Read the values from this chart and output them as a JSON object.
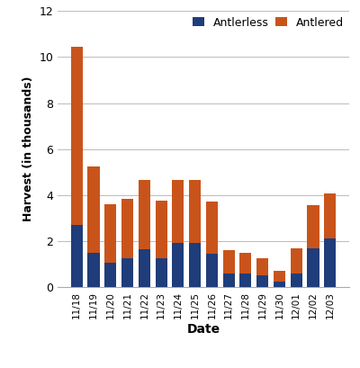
{
  "categories": [
    "11/18",
    "11/19",
    "11/20",
    "11/21",
    "11/22",
    "11/23",
    "11/24",
    "11/25",
    "11/26",
    "11/27",
    "11/28",
    "11/29",
    "11/30",
    "12/01",
    "12/02",
    "12/03"
  ],
  "antlerless": [
    2.7,
    1.5,
    1.05,
    1.25,
    1.65,
    1.25,
    1.9,
    1.9,
    1.45,
    0.6,
    0.6,
    0.5,
    0.25,
    0.6,
    1.7,
    2.1
  ],
  "antlered": [
    7.75,
    3.75,
    2.55,
    2.6,
    3.0,
    2.5,
    2.75,
    2.75,
    2.25,
    1.0,
    0.9,
    0.75,
    0.45,
    1.1,
    1.85,
    1.95
  ],
  "antlerless_color": "#1f3d7a",
  "antlered_color": "#c9541b",
  "xlabel": "Date",
  "ylabel": "Harvest (in thousands)",
  "ylim": [
    0,
    12
  ],
  "yticks": [
    0,
    2,
    4,
    6,
    8,
    10,
    12
  ],
  "legend_labels": [
    "Antlerless",
    "Antlered"
  ],
  "background_color": "#ffffff",
  "grid_color": "#bbbbbb"
}
